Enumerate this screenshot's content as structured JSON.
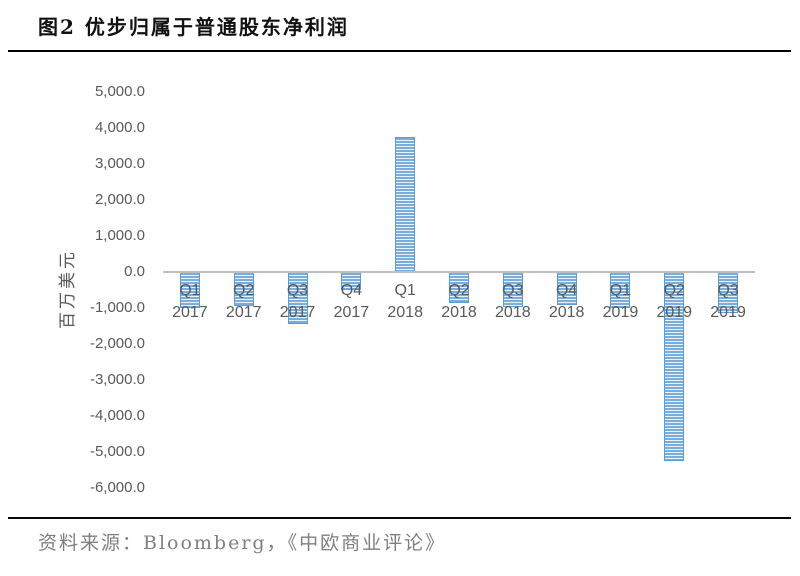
{
  "header": {
    "title": "图2 优步归属于普通股东净利润"
  },
  "footer": {
    "source": "资料来源：Bloomberg，《中欧商业评论》"
  },
  "chart_data": {
    "type": "bar",
    "title": "优步归属于普通股东净利润",
    "xlabel": "",
    "ylabel": "百万美元",
    "categories": [
      "Q1 2017",
      "Q2 2017",
      "Q3 2017",
      "Q4 2017",
      "Q1 2018",
      "Q2 2018",
      "Q3 2018",
      "Q4 2018",
      "Q1 2019",
      "Q2 2019",
      "Q3 2019"
    ],
    "values": [
      -1000,
      -970,
      -1450,
      -510,
      3750,
      -870,
      -990,
      -940,
      -1000,
      -5250,
      -1150
    ],
    "ylim": [
      -6000,
      5000
    ],
    "ytick_step": 1000,
    "ytick_values": [
      5000,
      4000,
      3000,
      2000,
      1000,
      0,
      -1000,
      -2000,
      -3000,
      -4000,
      -5000,
      -6000
    ],
    "ytick_labels": [
      "5,000.0",
      "4,000.0",
      "3,000.0",
      "2,000.0",
      "1,000.0",
      "0.0",
      "-1,000.0",
      "-2,000.0",
      "-3,000.0",
      "-4,000.0",
      "-5,000.0",
      "-6,000.0"
    ],
    "grid": false,
    "legend": "none",
    "bar_pattern": "horizontal-stripes",
    "colors": {
      "bar_stripe": "#79AEDC",
      "bar_stripe_light": "#EAF2FA",
      "bar_border": "#5B9BD5",
      "axis_text": "#595959",
      "zero_line": "#BFBFBF",
      "title_text": "#111111",
      "source_text": "#7F7F7F"
    }
  }
}
